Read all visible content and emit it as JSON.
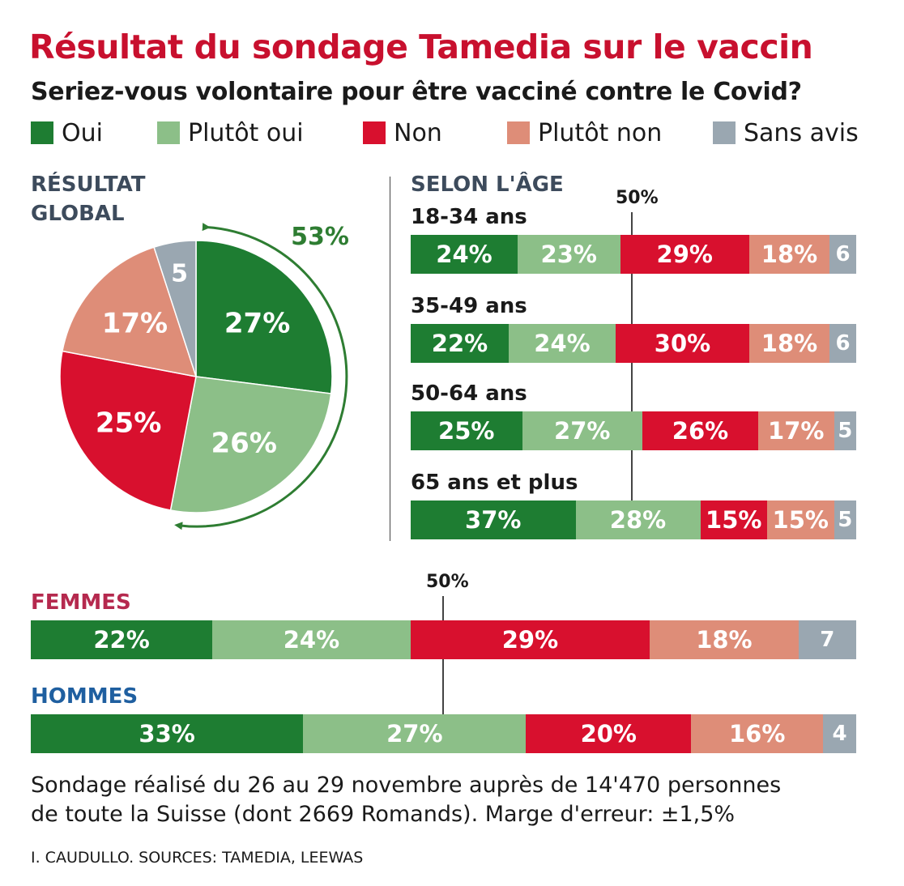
{
  "title": "Résultat du sondage Tamedia sur le vaccin",
  "question": "Seriez-vous volontaire pour être vacciné contre le Covid?",
  "legend": [
    {
      "label": "Oui",
      "color": "#1e7d32"
    },
    {
      "label": "Plutôt oui",
      "color": "#8cbf88"
    },
    {
      "label": "Non",
      "color": "#d8102e"
    },
    {
      "label": "Plutôt non",
      "color": "#de8d78"
    },
    {
      "label": "Sans avis",
      "color": "#9aa7b1"
    }
  ],
  "global_label_1": "RÉSULTAT",
  "global_label_2": "GLOBAL",
  "age_section_label": "SELON L'ÂGE",
  "fifty_label": "50%",
  "note_line1": "Sondage réalisé du 26 au 29 novembre auprès de 14'470 personnes",
  "note_line2": "de toute la Suisse (dont 2669 Romands). Marge d'erreur: ±1,5%",
  "credit": "I. CAUDULLO. SOURCES: TAMEDIA, LEEWAS",
  "chart_data": [
    {
      "type": "pie",
      "title": "RÉSULTAT GLOBAL",
      "categories": [
        "Oui",
        "Plutôt oui",
        "Non",
        "Plutôt non",
        "Sans avis"
      ],
      "values": [
        27,
        26,
        25,
        17,
        5
      ],
      "labels": [
        "27%",
        "26%",
        "25%",
        "17%",
        "5"
      ],
      "annotation": "53%"
    },
    {
      "type": "bar",
      "stacked": true,
      "orientation": "horizontal",
      "title": "SELON L'ÂGE",
      "series_names": [
        "Oui",
        "Plutôt oui",
        "Non",
        "Plutôt non",
        "Sans avis"
      ],
      "rows": [
        {
          "label": "18-34 ans",
          "values": [
            24,
            23,
            29,
            18,
            6
          ],
          "labels": [
            "24%",
            "23%",
            "29%",
            "18%",
            "6"
          ]
        },
        {
          "label": "35-49 ans",
          "values": [
            22,
            24,
            30,
            18,
            6
          ],
          "labels": [
            "22%",
            "24%",
            "30%",
            "18%",
            "6"
          ]
        },
        {
          "label": "50-64 ans",
          "values": [
            25,
            27,
            26,
            17,
            5
          ],
          "labels": [
            "25%",
            "27%",
            "26%",
            "17%",
            "5"
          ]
        },
        {
          "label": "65 ans et plus",
          "values": [
            37,
            28,
            15,
            15,
            5
          ],
          "labels": [
            "37%",
            "28%",
            "15%",
            "15%",
            "5"
          ]
        }
      ],
      "reference_line": 50
    },
    {
      "type": "bar",
      "stacked": true,
      "orientation": "horizontal",
      "series_names": [
        "Oui",
        "Plutôt oui",
        "Non",
        "Plutôt non",
        "Sans avis"
      ],
      "rows": [
        {
          "label": "FEMMES",
          "label_color": "#b5294e",
          "values": [
            22,
            24,
            29,
            18,
            7
          ],
          "labels": [
            "22%",
            "24%",
            "29%",
            "18%",
            "7"
          ]
        },
        {
          "label": "HOMMES",
          "label_color": "#1f5fa0",
          "values": [
            33,
            27,
            20,
            16,
            4
          ],
          "labels": [
            "33%",
            "27%",
            "20%",
            "16%",
            "4"
          ]
        }
      ],
      "reference_line": 50
    }
  ]
}
